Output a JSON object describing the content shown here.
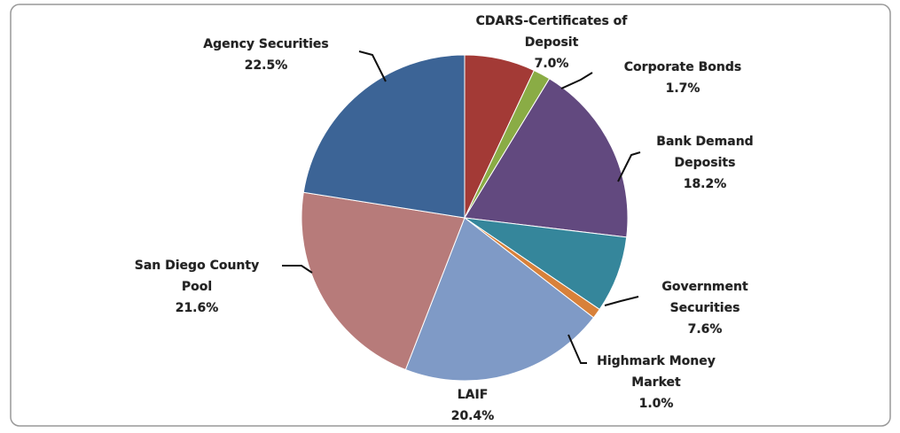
{
  "chart_data": {
    "type": "pie",
    "categories": [
      "CDARS-Certificates of Deposit",
      "Corporate Bonds",
      "Bank Demand Deposits",
      "Government Securities",
      "Highmark Money Market",
      "LAIF",
      "San Diego County Pool",
      "Agency Securities"
    ],
    "values": [
      7.0,
      1.7,
      18.2,
      7.6,
      1.0,
      20.4,
      21.6,
      22.5
    ],
    "value_labels": [
      "7.0%",
      "1.7%",
      "18.2%",
      "7.6%",
      "1.0%",
      "20.4%",
      "21.6%",
      "22.5%"
    ],
    "colors": [
      "#a33a36",
      "#8aac45",
      "#62497f",
      "#35869b",
      "#d8813a",
      "#7f9ac6",
      "#b77b7a",
      "#3c6496"
    ]
  }
}
